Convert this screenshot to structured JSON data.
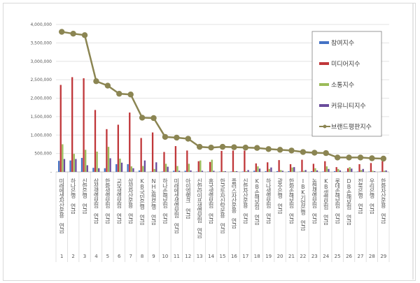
{
  "chart_data": {
    "type": "bar",
    "title": "",
    "xlabel": "",
    "ylabel": "",
    "ylim": [
      0,
      4000000
    ],
    "yticks": [
      "-",
      "500,000",
      "1,000,000",
      "1,500,000",
      "2,000,000",
      "2,500,000",
      "3,000,000",
      "3,500,000",
      "4,000,000"
    ],
    "grid": true,
    "legend_position": "right",
    "categories": [
      "미래에셋자산운용 연금",
      "하나은행 연금",
      "신한은행 연금",
      "삼성생명보험 연금",
      "한화생명보험 연금",
      "교보생명보험 연금",
      "삼성자산운용 연금",
      "KB국민은행 연금",
      "NH농협은행 연금",
      "하나손해보험 연금",
      "미래에셋생명보험 연금",
      "아이엠뱅크 연금",
      "신한라이프생명보험 연금",
      "흥국생명보험 연금",
      "한국투자신탁운용 연금",
      "플러스자산운용 연금",
      "신한자산운용 연금",
      "KB손해보험 연금",
      "하나생명보험 연금",
      "광주은행 연금",
      "한화손해보험 연금",
      "IBK기업은행 연금",
      "농협생명보험 연금",
      "KB생명보험 연금",
      "롯데손해보험 연금",
      "DB손해보험 연금",
      "전북은행 연금",
      "우리은행 연금",
      "한화자산운용 연금"
    ],
    "category_numbers": [
      "1",
      "2",
      "3",
      "4",
      "5",
      "6",
      "7",
      "8",
      "9",
      "10",
      "11",
      "12",
      "13",
      "14",
      "15",
      "16",
      "17",
      "18",
      "19",
      "20",
      "21",
      "22",
      "23",
      "24",
      "25",
      "26",
      "27",
      "28",
      "29"
    ],
    "series": [
      {
        "name": "참여지수",
        "type": "bar",
        "color": "#4472c4",
        "values": [
          300000,
          310000,
          380000,
          110000,
          100000,
          210000,
          210000,
          40000,
          10000,
          10000,
          30000,
          30000,
          10000,
          10000,
          10000,
          10000,
          10000,
          30000,
          20000,
          20000,
          20000,
          10000,
          20000,
          10000,
          20000,
          10000,
          10000,
          10000,
          10000
        ]
      },
      {
        "name": "미디어지수",
        "type": "bar",
        "color": "#c0373a",
        "values": [
          2360000,
          2570000,
          2540000,
          1680000,
          1160000,
          1280000,
          1610000,
          920000,
          1070000,
          540000,
          700000,
          580000,
          290000,
          270000,
          570000,
          580000,
          580000,
          230000,
          260000,
          320000,
          210000,
          330000,
          220000,
          290000,
          130000,
          100000,
          210000,
          240000,
          290000
        ]
      },
      {
        "name": "소통지수",
        "type": "bar",
        "color": "#9bbb59",
        "values": [
          750000,
          490000,
          600000,
          550000,
          680000,
          360000,
          150000,
          160000,
          80000,
          220000,
          160000,
          220000,
          310000,
          330000,
          20000,
          20000,
          20000,
          150000,
          80000,
          50000,
          120000,
          30000,
          100000,
          150000,
          80000,
          130000,
          50000,
          30000,
          30000
        ]
      },
      {
        "name": "커뮤니티지수",
        "type": "bar",
        "color": "#6a4c9c",
        "values": [
          350000,
          350000,
          180000,
          100000,
          370000,
          250000,
          100000,
          310000,
          260000,
          140000,
          30000,
          40000,
          30000,
          30000,
          20000,
          20000,
          50000,
          90000,
          120000,
          30000,
          130000,
          50000,
          40000,
          80000,
          40000,
          90000,
          80000,
          20000,
          40000
        ]
      },
      {
        "name": "브랜드평판지수",
        "type": "line",
        "color": "#8b8552",
        "values": [
          3800000,
          3750000,
          3710000,
          2460000,
          2340000,
          2120000,
          2100000,
          1470000,
          1460000,
          950000,
          930000,
          900000,
          680000,
          660000,
          680000,
          670000,
          660000,
          650000,
          620000,
          600000,
          580000,
          540000,
          520000,
          510000,
          390000,
          390000,
          390000,
          370000,
          360000
        ]
      }
    ]
  }
}
